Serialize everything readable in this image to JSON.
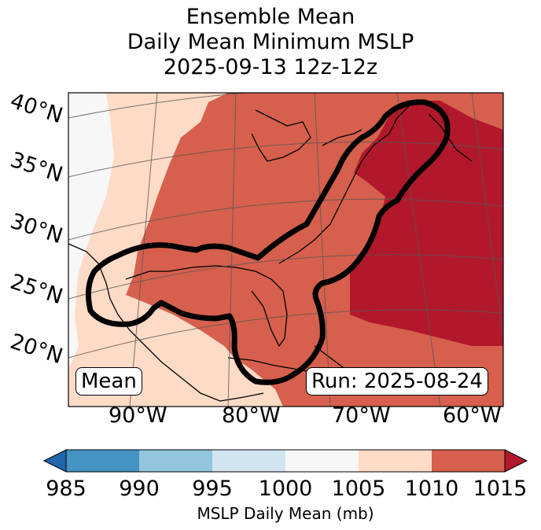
{
  "title": {
    "line1": "Ensemble Mean",
    "line2": "Daily Mean Minimum MSLP",
    "line3": "2025-09-13 12z-12z"
  },
  "map": {
    "lat_labels": [
      "40°N",
      "35°N",
      "30°N",
      "25°N",
      "20°N"
    ],
    "lon_labels": [
      "90°W",
      "80°W",
      "70°W",
      "60°W"
    ],
    "left_box": "Mean",
    "right_box": "Run: 2025-08-24"
  },
  "colorbar": {
    "ticks": [
      "985",
      "990",
      "995",
      "1000",
      "1005",
      "1010",
      "1015"
    ],
    "colors": [
      "#2166ac",
      "#4393c3",
      "#92c5de",
      "#d1e5f0",
      "#f7f7f7",
      "#fddbc7",
      "#d6604d",
      "#b2182b"
    ],
    "label": "MSLP Daily Mean (mb)"
  }
}
